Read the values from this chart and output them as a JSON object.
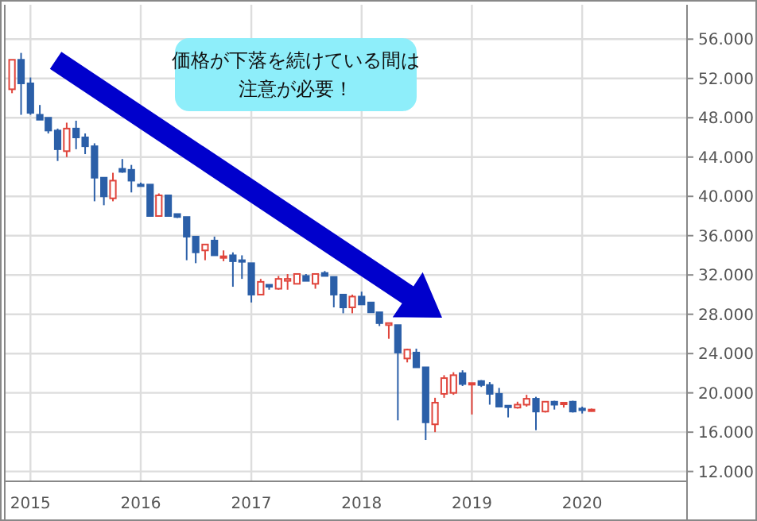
{
  "chart_data": {
    "type": "candlestick",
    "x": [
      "2014-11",
      "2014-12",
      "2015-01",
      "2015-02",
      "2015-03",
      "2015-04",
      "2015-05",
      "2015-06",
      "2015-07",
      "2015-08",
      "2015-09",
      "2015-10",
      "2015-11",
      "2015-12",
      "2016-01",
      "2016-02",
      "2016-03",
      "2016-04",
      "2016-05",
      "2016-06",
      "2016-07",
      "2016-08",
      "2016-09",
      "2016-10",
      "2016-11",
      "2016-12",
      "2017-01",
      "2017-02",
      "2017-03",
      "2017-04",
      "2017-05",
      "2017-06",
      "2017-07",
      "2017-08",
      "2017-09",
      "2017-10",
      "2017-11",
      "2017-12",
      "2018-01",
      "2018-02",
      "2018-03",
      "2018-04",
      "2018-05",
      "2018-06",
      "2018-07",
      "2018-08",
      "2018-09",
      "2018-10",
      "2018-11",
      "2018-12",
      "2019-01",
      "2019-02",
      "2019-03",
      "2019-04",
      "2019-05",
      "2019-06",
      "2019-07",
      "2019-08",
      "2019-09",
      "2019-10",
      "2019-11",
      "2019-12",
      "2020-01",
      "2020-02"
    ],
    "ohlc": [
      [
        50.9,
        53.9,
        50.5,
        53.9
      ],
      [
        53.9,
        54.6,
        48.3,
        51.5
      ],
      [
        51.5,
        52.1,
        48.3,
        48.5
      ],
      [
        48.3,
        49.3,
        47.8,
        47.8
      ],
      [
        48.0,
        48.0,
        46.4,
        46.7
      ],
      [
        46.7,
        46.9,
        43.6,
        44.8
      ],
      [
        44.6,
        47.5,
        44.0,
        46.9
      ],
      [
        46.9,
        47.7,
        44.8,
        46.0
      ],
      [
        46.0,
        46.4,
        44.3,
        45.1
      ],
      [
        45.1,
        45.4,
        39.5,
        41.9
      ],
      [
        41.9,
        41.9,
        39.1,
        40.0
      ],
      [
        39.8,
        42.4,
        39.5,
        41.6
      ],
      [
        42.8,
        43.8,
        42.4,
        42.5
      ],
      [
        42.7,
        43.2,
        40.4,
        41.6
      ],
      [
        41.2,
        41.4,
        41.0,
        41.1
      ],
      [
        41.2,
        41.2,
        38.0,
        38.0
      ],
      [
        38.0,
        40.3,
        38.0,
        40.1
      ],
      [
        40.1,
        40.1,
        38.0,
        38.0
      ],
      [
        38.2,
        38.2,
        37.8,
        37.9
      ],
      [
        37.9,
        37.9,
        33.5,
        35.9
      ],
      [
        35.9,
        35.9,
        33.2,
        34.3
      ],
      [
        34.5,
        35.1,
        33.5,
        35.1
      ],
      [
        35.5,
        35.9,
        34.0,
        34.0
      ],
      [
        33.8,
        34.5,
        33.4,
        33.9
      ],
      [
        34.0,
        34.3,
        30.8,
        33.4
      ],
      [
        33.5,
        34.0,
        31.6,
        33.4
      ],
      [
        33.2,
        33.2,
        29.2,
        30.0
      ],
      [
        30.0,
        31.6,
        30.0,
        31.3
      ],
      [
        31.0,
        31.0,
        30.5,
        30.8
      ],
      [
        30.6,
        31.9,
        30.5,
        31.6
      ],
      [
        31.4,
        32.1,
        30.5,
        31.6
      ],
      [
        31.1,
        32.1,
        31.1,
        32.1
      ],
      [
        31.9,
        32.1,
        31.4,
        31.4
      ],
      [
        31.1,
        32.1,
        30.6,
        32.1
      ],
      [
        32.2,
        32.4,
        31.9,
        31.9
      ],
      [
        31.8,
        31.8,
        28.7,
        30.0
      ],
      [
        30.0,
        30.0,
        28.1,
        28.7
      ],
      [
        28.7,
        30.0,
        28.1,
        29.8
      ],
      [
        29.8,
        30.3,
        29.0,
        29.0
      ],
      [
        29.2,
        29.2,
        28.2,
        28.2
      ],
      [
        28.2,
        28.2,
        26.8,
        27.1
      ],
      [
        26.9,
        27.1,
        25.5,
        27.1
      ],
      [
        26.9,
        26.9,
        17.2,
        24.1
      ],
      [
        23.5,
        24.5,
        23.1,
        24.4
      ],
      [
        24.1,
        24.5,
        22.6,
        22.6
      ],
      [
        22.6,
        22.6,
        15.2,
        17.0
      ],
      [
        16.8,
        19.5,
        16.0,
        19.0
      ],
      [
        19.9,
        21.8,
        19.5,
        21.5
      ],
      [
        20.0,
        22.1,
        19.8,
        21.8
      ],
      [
        22.0,
        22.3,
        20.7,
        20.9
      ],
      [
        20.9,
        21.0,
        17.8,
        21.0
      ],
      [
        21.2,
        21.3,
        20.6,
        20.8
      ],
      [
        20.8,
        21.1,
        18.8,
        19.9
      ],
      [
        19.9,
        20.5,
        18.6,
        18.6
      ],
      [
        18.7,
        18.7,
        17.5,
        18.6
      ],
      [
        18.5,
        19.1,
        18.4,
        18.8
      ],
      [
        18.8,
        19.8,
        18.6,
        19.4
      ],
      [
        19.4,
        19.6,
        16.2,
        18.1
      ],
      [
        18.1,
        19.1,
        18.0,
        19.1
      ],
      [
        19.1,
        19.2,
        18.3,
        18.8
      ],
      [
        18.9,
        19.0,
        18.5,
        19.0
      ],
      [
        19.1,
        19.2,
        18.0,
        18.1
      ],
      [
        18.4,
        18.6,
        17.9,
        18.3
      ],
      [
        18.2,
        18.4,
        18.1,
        18.3
      ]
    ],
    "xlim": [
      "2014-10-08",
      "2020-12-13"
    ],
    "xticks": [
      {
        "value": "2015",
        "label": "2015"
      },
      {
        "value": "2016",
        "label": "2016"
      },
      {
        "value": "2017",
        "label": "2017"
      },
      {
        "value": "2018",
        "label": "2018"
      },
      {
        "value": "2019",
        "label": "2019"
      },
      {
        "value": "2020",
        "label": "2020"
      }
    ],
    "ylim": [
      11.0,
      59.5
    ],
    "yticks": [
      {
        "value": 12,
        "label": "12.000"
      },
      {
        "value": 16,
        "label": "16.000"
      },
      {
        "value": 20,
        "label": "20.000"
      },
      {
        "value": 24,
        "label": "24.000"
      },
      {
        "value": 28,
        "label": "28.000"
      },
      {
        "value": 32,
        "label": "32.000"
      },
      {
        "value": 36,
        "label": "36.000"
      },
      {
        "value": 40,
        "label": "40.000"
      },
      {
        "value": 44,
        "label": "44.000"
      },
      {
        "value": 48,
        "label": "48.000"
      },
      {
        "value": 52,
        "label": "52.000"
      },
      {
        "value": 56,
        "label": "56.000"
      }
    ],
    "grid": true,
    "annotations": [
      "価格が下落を続けている間は注意が必要！"
    ]
  }
}
